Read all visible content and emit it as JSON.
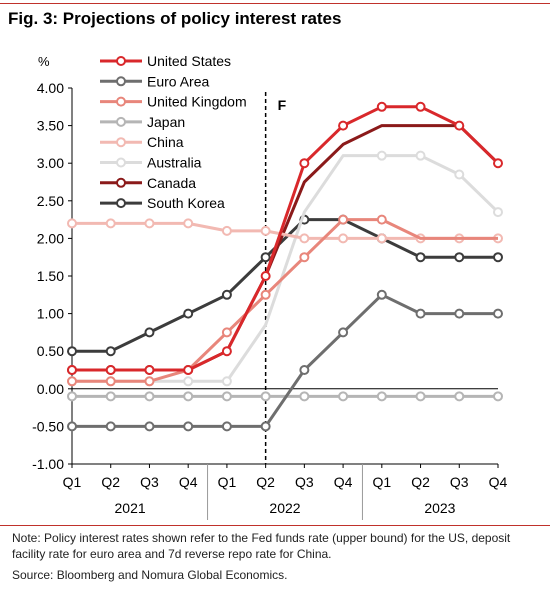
{
  "title": "Fig. 3: Projections of policy interest rates",
  "note": "Note: Policy interest rates shown refer to the Fed funds rate (upper bound) for the US, deposit facility rate for euro area and 7d reverse repo rate for China.",
  "source": "Source: Bloomberg and Nomura Global Economics.",
  "chart_data": {
    "type": "line",
    "title": "Fig. 3: Projections of policy interest rates",
    "ylabel": "%",
    "xlabel": "",
    "ylim": [
      -1.0,
      4.0
    ],
    "ytick_step": 0.5,
    "yticks": [
      "4.00",
      "3.50",
      "3.00",
      "2.50",
      "2.00",
      "1.50",
      "1.00",
      "0.50",
      "0.00",
      "-0.50",
      "-1.00"
    ],
    "categories": [
      "Q1",
      "Q2",
      "Q3",
      "Q4",
      "Q1",
      "Q2",
      "Q3",
      "Q4",
      "Q1",
      "Q2",
      "Q3",
      "Q4"
    ],
    "years": [
      {
        "label": "2021",
        "start": 0,
        "end": 3
      },
      {
        "label": "2022",
        "start": 4,
        "end": 7
      },
      {
        "label": "2023",
        "start": 8,
        "end": 11
      }
    ],
    "forecast_marker": {
      "label": "F",
      "after_index": 5
    },
    "grid": false,
    "legend": "top-left",
    "series": [
      {
        "name": "United States",
        "color": "#d9282b",
        "width": 3,
        "values": [
          0.25,
          0.25,
          0.25,
          0.25,
          0.5,
          1.5,
          3.0,
          3.5,
          3.75,
          3.75,
          3.5,
          3.0
        ],
        "markers": [
          0,
          1,
          2,
          3,
          4,
          5,
          6,
          7,
          8,
          9,
          10,
          11
        ]
      },
      {
        "name": "Euro Area",
        "color": "#6e6e6e",
        "width": 3,
        "values": [
          -0.5,
          -0.5,
          -0.5,
          -0.5,
          -0.5,
          -0.5,
          0.25,
          0.75,
          1.25,
          1.0,
          1.0,
          1.0
        ],
        "markers": [
          0,
          1,
          2,
          3,
          4,
          5,
          6,
          7,
          8,
          9,
          10,
          11
        ]
      },
      {
        "name": "United Kingdom",
        "color": "#e8867b",
        "width": 3,
        "values": [
          0.1,
          0.1,
          0.1,
          0.25,
          0.75,
          1.25,
          1.75,
          2.25,
          2.25,
          2.0,
          2.0,
          2.0
        ],
        "markers": [
          0,
          1,
          2,
          3,
          4,
          5,
          6,
          7,
          8
        ]
      },
      {
        "name": "Japan",
        "color": "#b5b5b5",
        "width": 3,
        "values": [
          -0.1,
          -0.1,
          -0.1,
          -0.1,
          -0.1,
          -0.1,
          -0.1,
          -0.1,
          -0.1,
          -0.1,
          -0.1,
          -0.1
        ],
        "markers": [
          0,
          1,
          2,
          3,
          4,
          5,
          6,
          7,
          8,
          9,
          10,
          11
        ]
      },
      {
        "name": "China",
        "color": "#f2b9b2",
        "width": 3,
        "values": [
          2.2,
          2.2,
          2.2,
          2.2,
          2.1,
          2.1,
          2.0,
          2.0,
          2.0,
          2.0,
          2.0,
          2.0
        ],
        "markers": [
          0,
          1,
          2,
          3,
          4,
          5,
          6,
          7,
          8,
          9,
          10,
          11
        ]
      },
      {
        "name": "Australia",
        "color": "#dcdcdc",
        "width": 3,
        "values": [
          0.1,
          0.1,
          0.1,
          0.1,
          0.1,
          0.85,
          2.35,
          3.1,
          3.1,
          3.1,
          2.85,
          2.35
        ],
        "markers": [
          0,
          1,
          2,
          3,
          4,
          8,
          9,
          10,
          11
        ]
      },
      {
        "name": "Canada",
        "color": "#8b1a1a",
        "width": 3,
        "values": [
          0.25,
          0.25,
          0.25,
          0.25,
          0.5,
          1.5,
          2.75,
          3.25,
          3.5,
          3.5,
          3.5,
          3.0
        ],
        "markers": [
          0,
          1,
          2,
          3
        ]
      },
      {
        "name": "South Korea",
        "color": "#3c3c3c",
        "width": 3,
        "values": [
          0.5,
          0.5,
          0.75,
          1.0,
          1.25,
          1.75,
          2.25,
          2.25,
          2.0,
          1.75,
          1.75,
          1.75
        ],
        "markers": [
          0,
          1,
          2,
          3,
          4,
          5,
          6,
          7,
          8,
          9,
          10,
          11
        ]
      }
    ]
  }
}
